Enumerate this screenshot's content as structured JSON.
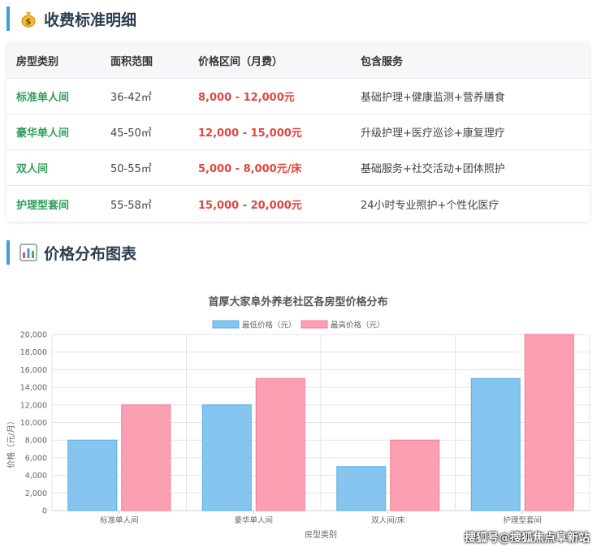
{
  "sections": {
    "fees_title": "收费标准明细",
    "chart_title": "价格分布图表"
  },
  "table": {
    "headers": [
      "房型类别",
      "面积范围",
      "价格区间（月费）",
      "包含服务"
    ],
    "rows": [
      {
        "type": "标准单人间",
        "area": "36-42㎡",
        "price": "8,000 - 12,000元",
        "service": "基础护理+健康监测+营养膳食"
      },
      {
        "type": "豪华单人间",
        "area": "45-50㎡",
        "price": "12,000 - 15,000元",
        "service": "升级护理+医疗巡诊+康复理疗"
      },
      {
        "type": "双人间",
        "area": "50-55㎡",
        "price": "5,000 - 8,000元/床",
        "service": "基础服务+社交活动+团体照护"
      },
      {
        "type": "护理型套间",
        "area": "55-58㎡",
        "price": "15,000 - 20,000元",
        "service": "24小时专业照护+个性化医疗"
      }
    ]
  },
  "chart_data": {
    "type": "bar",
    "title": "首厚大家阜外养老社区各房型价格分布",
    "categories": [
      "标准单人间",
      "豪华单人间",
      "双人间/床",
      "护理型套间"
    ],
    "series": [
      {
        "name": "最低价格（元）",
        "values": [
          8000,
          12000,
          5000,
          15000
        ],
        "color": "#86c5f0",
        "stroke": "#5aaee6"
      },
      {
        "name": "最高价格（元）",
        "values": [
          12000,
          15000,
          8000,
          20000
        ],
        "color": "#fba0b2",
        "stroke": "#f47c95"
      }
    ],
    "xlabel": "房型类别",
    "ylabel": "价格（元/月）",
    "ylim": [
      0,
      20000
    ],
    "yticks": [
      "0",
      "2,000",
      "4,000",
      "6,000",
      "8,000",
      "10,000",
      "12,000",
      "14,000",
      "16,000",
      "18,000",
      "20,000"
    ],
    "grid": true,
    "legend_position": "top"
  },
  "watermark": "搜狐号@搜狐焦点阜新站",
  "icons": {
    "fees": "money-bag-icon",
    "chart": "bar-chart-icon"
  }
}
